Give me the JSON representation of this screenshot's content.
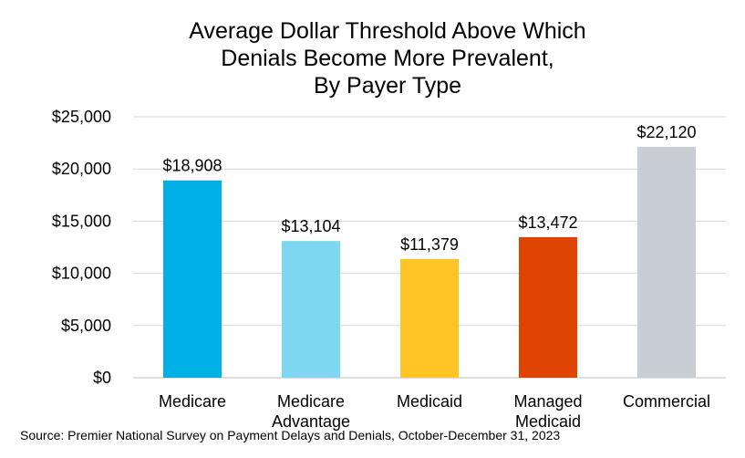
{
  "chart_data": {
    "type": "bar",
    "title_lines": [
      "Average Dollar Threshold Above Which",
      "Denials Become More Prevalent,",
      "By Payer Type"
    ],
    "xlabel": "",
    "ylabel": "",
    "ylim": [
      0,
      25000
    ],
    "y_ticks": [
      {
        "value": 0,
        "label": "$0"
      },
      {
        "value": 5000,
        "label": "$5,000"
      },
      {
        "value": 10000,
        "label": "$10,000"
      },
      {
        "value": 15000,
        "label": "$15,000"
      },
      {
        "value": 20000,
        "label": "$20,000"
      },
      {
        "value": 25000,
        "label": "$25,000"
      }
    ],
    "grid": true,
    "legend": "none",
    "categories": [
      {
        "lines": [
          "Medicare"
        ]
      },
      {
        "lines": [
          "Medicare",
          "Advantage"
        ]
      },
      {
        "lines": [
          "Medicaid"
        ]
      },
      {
        "lines": [
          "Managed",
          "Medicaid"
        ]
      },
      {
        "lines": [
          "Commercial"
        ]
      }
    ],
    "values": [
      18908,
      13104,
      11379,
      13472,
      22120
    ],
    "data_labels": [
      "$18,908",
      "$13,104",
      "$11,379",
      "$13,472",
      "$22,120"
    ],
    "colors": [
      "#00b0e6",
      "#7fd8f2",
      "#ffc425",
      "#e04403",
      "#c8ced3"
    ]
  },
  "source": "Source: Premier National Survey on Payment Delays and Denials, October-December 31, 2023"
}
